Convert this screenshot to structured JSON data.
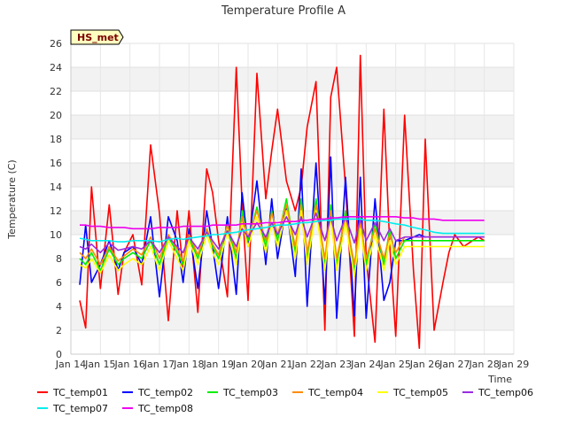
{
  "chart_data": {
    "type": "line",
    "title": "Temperature Profile A",
    "xlabel": "Time",
    "ylabel": "Temperature (C)",
    "badge": "HS_met",
    "grid": true,
    "legend_position": "bottom",
    "x_ticks": [
      "Jan 14",
      "Jan 15",
      "Jan 16",
      "Jan 17",
      "Jan 18",
      "Jan 19",
      "Jan 20",
      "Jan 21",
      "Jan 22",
      "Jan 23",
      "Jan 24",
      "Jan 25",
      "Jan 26",
      "Jan 27",
      "Jan 28",
      "Jan 29"
    ],
    "xlim": [
      0,
      15
    ],
    "ylim": [
      0,
      26
    ],
    "y_ticks": [
      0,
      2,
      4,
      6,
      8,
      10,
      12,
      14,
      16,
      18,
      20,
      22,
      24,
      26
    ],
    "x": [
      0.3,
      0.5,
      0.7,
      1.0,
      1.3,
      1.6,
      1.8,
      2.1,
      2.4,
      2.7,
      3.0,
      3.3,
      3.6,
      3.8,
      4.0,
      4.3,
      4.6,
      4.8,
      5.0,
      5.3,
      5.6,
      5.8,
      6.0,
      6.3,
      6.6,
      6.8,
      7.0,
      7.3,
      7.6,
      7.8,
      8.0,
      8.3,
      8.6,
      8.8,
      9.0,
      9.3,
      9.6,
      9.8,
      10.0,
      10.3,
      10.6,
      10.8,
      11.0,
      11.3,
      11.6,
      11.8,
      12.0,
      12.3,
      12.6,
      12.8,
      13.0,
      13.3,
      13.6,
      13.8,
      14.0
    ],
    "series": [
      {
        "name": "TC_temp01",
        "color": "#ff0000",
        "values": [
          4.5,
          2.2,
          14.0,
          5.5,
          12.5,
          5.0,
          8.5,
          10.0,
          5.8,
          17.5,
          11.8,
          2.8,
          12.0,
          7.0,
          12.0,
          3.5,
          15.5,
          13.5,
          9.5,
          4.8,
          24.0,
          12.5,
          4.5,
          23.5,
          13.0,
          17.0,
          20.5,
          14.5,
          12.0,
          14.0,
          19.0,
          22.8,
          2.0,
          21.5,
          24.0,
          14.0,
          1.5,
          25.0,
          8.0,
          1.0,
          20.5,
          9.0,
          1.5,
          20.0,
          7.0,
          0.5,
          18.0,
          2.0,
          6.0,
          8.5,
          10.0,
          9.0,
          9.5,
          9.8,
          9.5
        ]
      },
      {
        "name": "TC_temp02",
        "color": "#0000ff",
        "values": [
          5.8,
          10.8,
          6.0,
          7.5,
          9.5,
          7.0,
          8.5,
          9.0,
          7.5,
          11.5,
          4.8,
          11.5,
          9.5,
          6.0,
          10.5,
          5.5,
          12.0,
          9.0,
          5.5,
          11.5,
          5.0,
          13.5,
          9.0,
          14.5,
          7.5,
          13.0,
          8.0,
          12.5,
          6.5,
          15.5,
          4.0,
          16.0,
          4.2,
          16.5,
          3.0,
          14.8,
          3.2,
          14.8,
          3.0,
          13.0,
          4.5,
          6.0,
          9.5,
          9.5,
          9.8,
          10.0,
          9.8,
          9.8,
          9.8,
          9.8,
          9.8,
          9.8,
          9.8,
          9.8,
          9.8
        ]
      },
      {
        "name": "TC_temp03",
        "color": "#00ee00",
        "values": [
          8.0,
          7.5,
          8.5,
          7.0,
          8.8,
          7.5,
          8.0,
          8.5,
          8.0,
          9.5,
          7.5,
          9.8,
          8.5,
          7.5,
          9.8,
          8.0,
          10.5,
          9.0,
          8.0,
          10.8,
          8.0,
          12.0,
          9.5,
          12.3,
          9.0,
          12.0,
          9.5,
          13.0,
          8.5,
          13.0,
          8.0,
          13.0,
          7.5,
          12.5,
          7.5,
          12.0,
          7.0,
          11.5,
          7.5,
          11.0,
          7.5,
          10.5,
          8.0,
          9.5,
          9.5,
          9.5,
          9.5,
          9.5,
          9.5,
          9.5,
          9.5,
          9.5,
          9.5,
          9.5,
          9.5
        ]
      },
      {
        "name": "TC_temp04",
        "color": "#ff8c00",
        "values": [
          8.5,
          8.0,
          8.8,
          7.5,
          9.0,
          7.8,
          8.2,
          8.8,
          8.3,
          9.8,
          8.0,
          10.0,
          8.8,
          7.8,
          10.0,
          8.3,
          10.5,
          9.2,
          8.3,
          10.8,
          8.5,
          11.5,
          9.8,
          12.0,
          9.5,
          11.8,
          10.0,
          12.5,
          9.0,
          12.5,
          8.5,
          12.5,
          8.0,
          12.0,
          8.0,
          11.5,
          7.5,
          11.0,
          8.0,
          10.5,
          8.0,
          10.0,
          8.5,
          9.8,
          9.8,
          9.8,
          9.8,
          9.8,
          9.8,
          9.8,
          9.8,
          9.8,
          9.8,
          9.8,
          9.8
        ]
      },
      {
        "name": "TC_temp05",
        "color": "#ffff00",
        "values": [
          7.5,
          7.2,
          8.0,
          6.8,
          8.3,
          7.0,
          7.5,
          8.0,
          7.5,
          9.0,
          7.0,
          9.5,
          8.0,
          7.0,
          9.5,
          7.5,
          10.0,
          8.5,
          7.5,
          10.2,
          7.5,
          11.0,
          9.0,
          11.5,
          8.5,
          11.0,
          9.0,
          12.0,
          8.0,
          12.0,
          7.5,
          12.0,
          7.0,
          11.5,
          7.0,
          11.0,
          6.5,
          10.5,
          7.0,
          10.0,
          7.0,
          9.5,
          7.5,
          9.0,
          9.0,
          9.0,
          9.0,
          9.0,
          9.0,
          9.0,
          9.0,
          9.0,
          9.0,
          9.0,
          9.0
        ]
      },
      {
        "name": "TC_temp06",
        "color": "#9a2be2",
        "values": [
          9.0,
          8.8,
          9.2,
          8.5,
          9.3,
          8.7,
          8.8,
          9.0,
          8.8,
          9.5,
          8.5,
          9.8,
          9.0,
          8.5,
          9.8,
          8.8,
          10.2,
          9.5,
          8.8,
          10.3,
          9.0,
          10.5,
          9.8,
          11.0,
          9.8,
          11.0,
          10.0,
          11.5,
          10.0,
          11.5,
          9.8,
          11.8,
          9.5,
          11.5,
          9.5,
          11.5,
          9.3,
          11.3,
          9.5,
          11.0,
          9.5,
          10.5,
          9.5,
          9.8,
          9.8,
          9.8,
          9.8,
          9.8,
          9.8,
          9.8,
          9.8,
          9.8,
          9.8,
          9.8,
          9.8
        ]
      },
      {
        "name": "TC_temp07",
        "color": "#00eeee",
        "values": [
          9.7,
          9.6,
          9.5,
          9.5,
          9.5,
          9.4,
          9.4,
          9.5,
          9.5,
          9.5,
          9.4,
          9.6,
          9.7,
          9.6,
          9.7,
          9.8,
          9.9,
          10.0,
          10.0,
          10.1,
          10.2,
          10.3,
          10.4,
          10.5,
          10.6,
          10.7,
          10.8,
          10.8,
          10.9,
          11.0,
          11.0,
          11.1,
          11.2,
          11.2,
          11.3,
          11.3,
          11.3,
          11.3,
          11.2,
          11.2,
          11.1,
          11.0,
          10.9,
          10.8,
          10.6,
          10.5,
          10.4,
          10.2,
          10.1,
          10.1,
          10.1,
          10.1,
          10.1,
          10.1,
          10.1
        ]
      },
      {
        "name": "TC_temp08",
        "color": "#ee00ee",
        "values": [
          10.8,
          10.8,
          10.7,
          10.7,
          10.6,
          10.6,
          10.6,
          10.5,
          10.5,
          10.5,
          10.6,
          10.6,
          10.6,
          10.7,
          10.7,
          10.7,
          10.7,
          10.8,
          10.8,
          10.8,
          10.8,
          10.9,
          10.9,
          10.9,
          11.0,
          11.0,
          11.0,
          11.1,
          11.1,
          11.2,
          11.2,
          11.3,
          11.3,
          11.4,
          11.4,
          11.5,
          11.5,
          11.5,
          11.5,
          11.5,
          11.5,
          11.5,
          11.5,
          11.4,
          11.4,
          11.3,
          11.3,
          11.3,
          11.2,
          11.2,
          11.2,
          11.2,
          11.2,
          11.2,
          11.2
        ]
      }
    ]
  }
}
